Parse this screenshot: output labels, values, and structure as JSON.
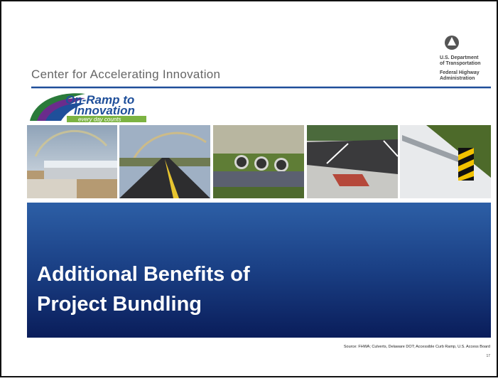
{
  "header": {
    "title": "Center for Accelerating Innovation"
  },
  "agency": {
    "department": [
      "U.S. Department",
      "of Transportation"
    ],
    "administration": [
      "Federal Highway",
      "Administration"
    ]
  },
  "logo": {
    "line1": "On-Ramp to",
    "line2": "Innovation",
    "tagline": "every day counts"
  },
  "slide": {
    "title": [
      "Additional Benefits of",
      "Project Bundling"
    ],
    "source": "Source: FHWA; Culverts, Delaware DOT; Accessible Curb Ramp, U.S. Access Board",
    "page_number": "17"
  }
}
